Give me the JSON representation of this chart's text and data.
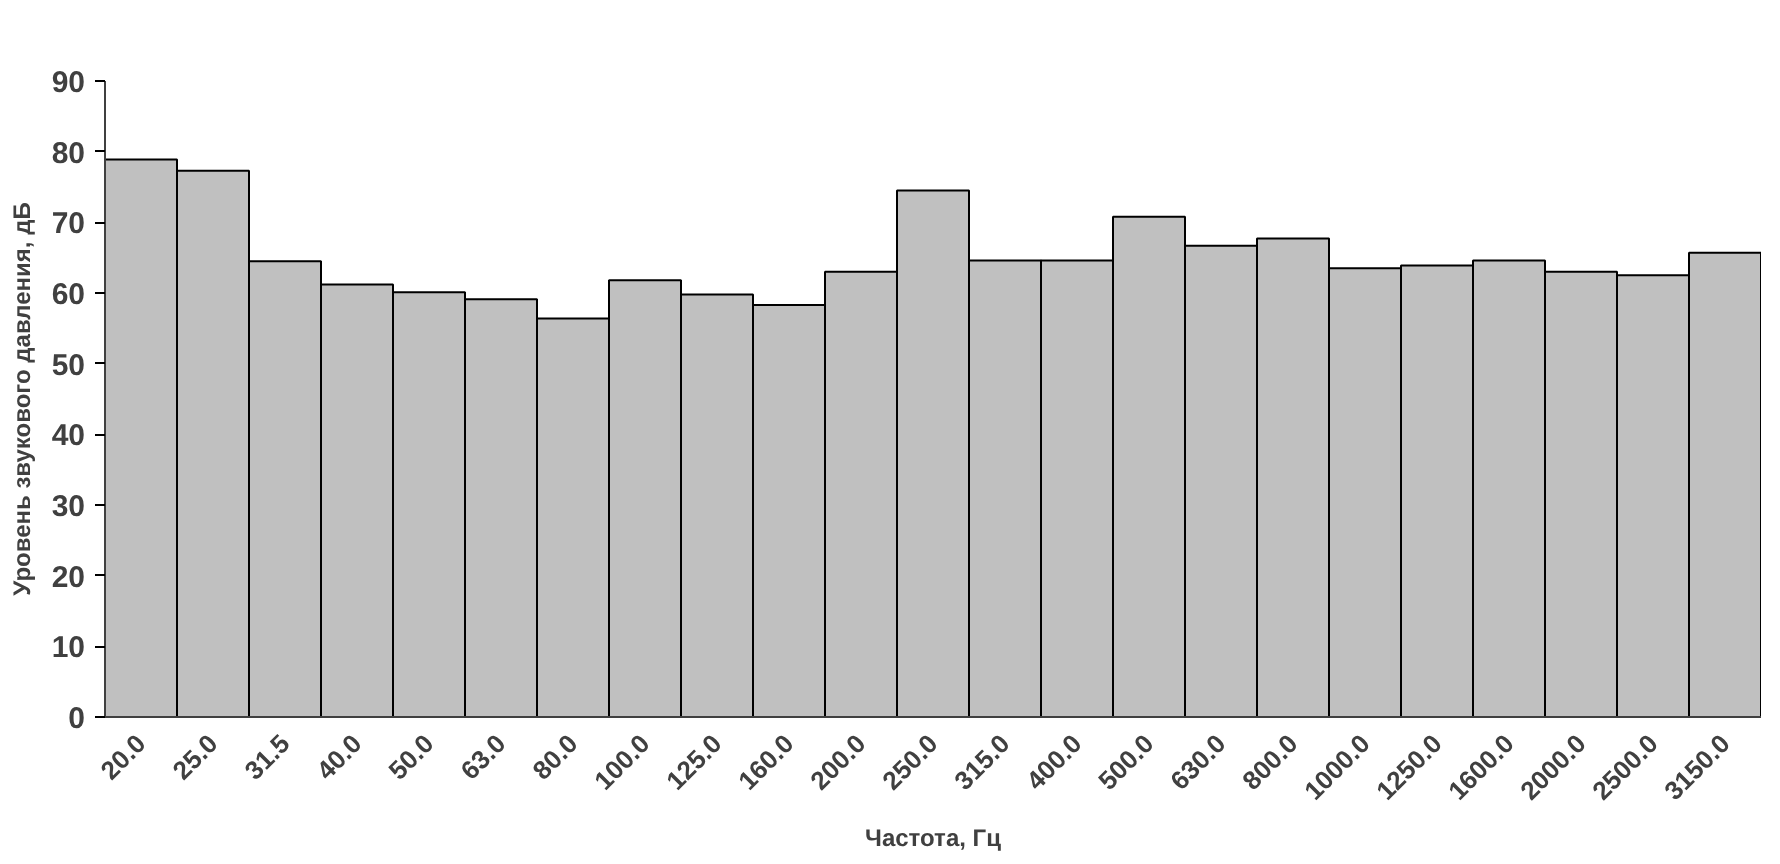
{
  "chart_data": {
    "type": "bar",
    "xlabel": "Частота, Гц",
    "ylabel": "Уровень звукового давления, дБ",
    "categories": [
      "20.0",
      "25.0",
      "31.5",
      "40.0",
      "50.0",
      "63.0",
      "80.0",
      "100.0",
      "125.0",
      "160.0",
      "200.0",
      "250.0",
      "315.0",
      "400.0",
      "500.0",
      "630.0",
      "800.0",
      "1000.0",
      "1250.0",
      "1600.0",
      "2000.0",
      "2500.0",
      "3150.0"
    ],
    "values": [
      78.9,
      77.3,
      64.5,
      61.2,
      60.1,
      59.1,
      56.4,
      61.8,
      59.8,
      58.3,
      63.0,
      74.5,
      64.6,
      64.6,
      70.8,
      66.7,
      67.7,
      63.5,
      63.9,
      64.6,
      63.0,
      62.5,
      65.7
    ],
    "color": "#c0c0c0",
    "ylim": [
      0,
      90
    ],
    "yticks": [
      0,
      10,
      20,
      30,
      40,
      50,
      60,
      70,
      80,
      90
    ],
    "grid": false
  }
}
